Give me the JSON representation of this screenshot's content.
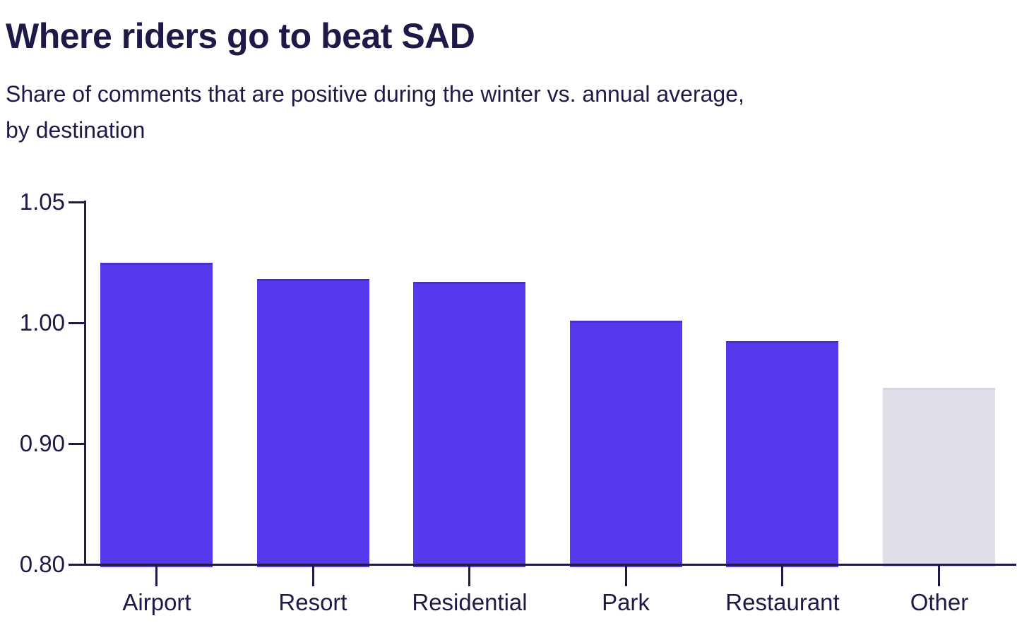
{
  "chart_data": {
    "type": "bar",
    "title": "Where riders go to beat SAD",
    "subtitle_lines": [
      "Share of comments that are positive during the winter vs. annual average,",
      "by destination"
    ],
    "categories": [
      "Airport",
      "Resort",
      "Residential",
      "Park",
      "Restaurant",
      "Other"
    ],
    "bars": [
      {
        "category": "Airport",
        "value": 1.025,
        "color": "#5639ec",
        "edge": "#4b2fd2"
      },
      {
        "category": "Resort",
        "value": 1.018,
        "color": "#5639ec",
        "edge": "#4b2fd2"
      },
      {
        "category": "Residential",
        "value": 1.017,
        "color": "#5639ec",
        "edge": "#4b2fd2"
      },
      {
        "category": "Park",
        "value": 1.001,
        "color": "#5639ec",
        "edge": "#4b2fd2"
      },
      {
        "category": "Restaurant",
        "value": 0.985,
        "color": "#5639ec",
        "edge": "#4b2fd2"
      },
      {
        "category": "Other",
        "value": 0.946,
        "color": "#dfdee8",
        "edge": "#d6d5e2"
      }
    ],
    "yticks": [
      0.8,
      0.9,
      1.0,
      1.05
    ],
    "ytick_labels": [
      "0.80",
      "0.90",
      "1.00",
      "1.05"
    ],
    "ylim": [
      0.8,
      1.05
    ],
    "axis_note": "y ticks rendered evenly spaced (non-linear value axis)",
    "xlabel": "",
    "ylabel": "",
    "grid": false,
    "legend": false,
    "colors": {
      "bar_primary": "#5639ec",
      "bar_muted": "#dfdee8",
      "text": "#1d1a47",
      "axis": "#1d1a47",
      "background": "#ffffff"
    }
  }
}
